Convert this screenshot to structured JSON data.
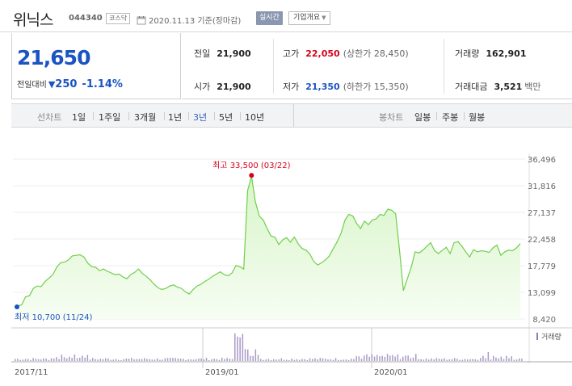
{
  "header": {
    "stock_name": "위닉스",
    "stock_code": "044340",
    "market": "코스닥",
    "date_basis": "2020.11.13 기준(장마감)",
    "realtime_label": "실시간",
    "company_overview_label": "기업개요"
  },
  "price": {
    "current": "21,650",
    "change_label": "전일대비",
    "change_value": "250",
    "change_percent": "-1.14%",
    "direction": "down"
  },
  "info": {
    "prev_close_label": "전일",
    "prev_close": "21,900",
    "high_label": "고가",
    "high": "22,050",
    "upper_limit": "(상한가 28,450)",
    "volume_label": "거래량",
    "volume": "162,901",
    "open_label": "시가",
    "open": "21,900",
    "low_label": "저가",
    "low": "21,350",
    "lower_limit": "(하한가 15,350)",
    "amount_label": "거래대금",
    "amount": "3,521",
    "amount_unit": "백만"
  },
  "period": {
    "line_label": "선차트",
    "line_options": [
      "1일",
      "1주일",
      "3개월",
      "1년",
      "3년",
      "5년",
      "10년"
    ],
    "selected": "3년",
    "candle_label": "봉차트",
    "candle_options": [
      "일봉",
      "주봉",
      "월봉"
    ]
  },
  "colors": {
    "down": "#1a54c2",
    "up": "#d6001c",
    "line": "#6fcf4a",
    "fill_top": "#d7f5c8",
    "volume": "#a99ac9"
  },
  "chart_data": {
    "type": "area",
    "y_ticks": [
      "36,496",
      "31,816",
      "27,137",
      "22,458",
      "17,779",
      "13,099",
      "8,420"
    ],
    "ylim": [
      8420,
      36496
    ],
    "x_ticks": [
      "2017/11",
      "2019/01",
      "2020/01"
    ],
    "max_annotation": "최고 33,500 (03/22)",
    "min_annotation": "최저 10,700 (11/24)",
    "volume_label": "거래량",
    "series": [
      {
        "values": [
          10700,
          10900,
          12300,
          12500,
          13800,
          14200,
          14100,
          15000,
          15600,
          16200,
          17500,
          18300,
          18400,
          18800,
          19500,
          19600,
          19700,
          19300,
          18200,
          17600,
          17500,
          16900,
          17200,
          16800,
          16500,
          16200,
          16300,
          15800,
          15500,
          16200,
          16600,
          17200,
          16400,
          15900,
          15300,
          14500,
          13900,
          13600,
          13800,
          14200,
          14400,
          14000,
          13800,
          13200,
          12800,
          13600,
          14200,
          14500,
          15000,
          15400,
          15900,
          16300,
          16700,
          16200,
          16000,
          16500,
          17800,
          17600,
          17200,
          31000,
          33500,
          29000,
          26500,
          25800,
          24300,
          23000,
          22800,
          21500,
          22300,
          22700,
          21900,
          22800,
          21600,
          20800,
          20500,
          19800,
          18500,
          17900,
          18300,
          18800,
          19500,
          20800,
          22000,
          23500,
          25800,
          26800,
          26500,
          25200,
          24300,
          25600,
          25000,
          25800,
          26000,
          26800,
          26600,
          27700,
          27500,
          26900,
          20500,
          13400,
          15500,
          17500,
          20200,
          20000,
          20500,
          21200,
          21800,
          20400,
          19900,
          20500,
          21000,
          19900,
          21800,
          22000,
          21200,
          20200,
          19300,
          20600,
          20200,
          20400,
          20300,
          20100,
          20900,
          21400,
          19600,
          20200,
          20500,
          20400,
          20900,
          21650
        ]
      }
    ]
  }
}
